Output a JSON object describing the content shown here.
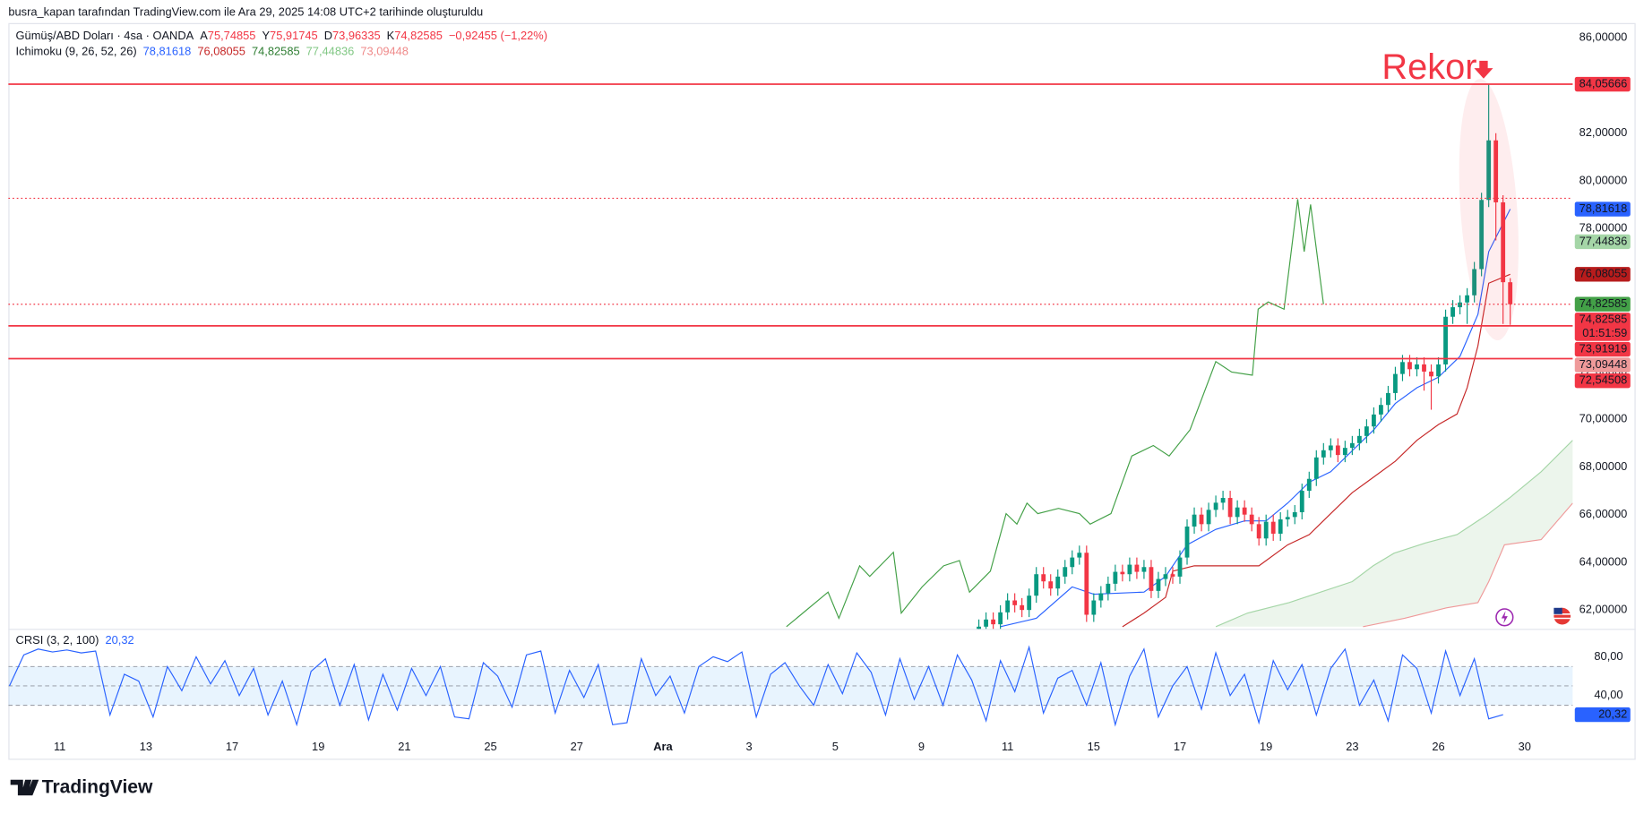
{
  "header": "busra_kapan tarafından TradingView.com ile Ara 29, 2025 14:08 UTC+2 tarihinde oluşturuldu",
  "footer": {
    "logo": "TradingView"
  },
  "chart_data": [
    {
      "type": "candlestick",
      "legend": {
        "symbol": "Gümüş/ABD Doları · 4sa · OANDA",
        "ohlc": [
          {
            "key": "A",
            "text": "75,74855"
          },
          {
            "key": "Y",
            "text": "75,91745"
          },
          {
            "key": "D",
            "text": "73,96335"
          },
          {
            "key": "K",
            "text": "74,82585"
          }
        ],
        "change": "−0,92455 (−1,22%)",
        "color": "#f23645"
      },
      "indicator": {
        "name": "Ichimoku (9, 26, 52, 26)",
        "values_text": [
          "78,81618",
          "76,08055",
          "74,82585",
          "77,44836",
          "73,09448"
        ],
        "colors": [
          "#2962ff",
          "#c62828",
          "#2e7d32",
          "#81c784",
          "#ef8a8a"
        ]
      },
      "annotation": "Rekor",
      "up_color": "#089981",
      "down_color": "#f23645",
      "xlim": [
        -7.15,
        210.7
      ],
      "ylim": [
        61.21,
        86.62
      ],
      "grid": false,
      "xticks": [
        {
          "value": 0,
          "label": "11"
        },
        {
          "value": 12,
          "label": "13"
        },
        {
          "value": 24,
          "label": "17"
        },
        {
          "value": 36,
          "label": "19"
        },
        {
          "value": 48,
          "label": "21"
        },
        {
          "value": 60,
          "label": "25"
        },
        {
          "value": 72,
          "label": "27"
        },
        {
          "value": 84,
          "label": "Ara"
        },
        {
          "value": 96,
          "label": "3"
        },
        {
          "value": 108,
          "label": "5"
        },
        {
          "value": 120,
          "label": "9"
        },
        {
          "value": 132,
          "label": "11"
        },
        {
          "value": 144,
          "label": "15"
        },
        {
          "value": 156,
          "label": "17"
        },
        {
          "value": 168,
          "label": "19"
        },
        {
          "value": 180,
          "label": "23"
        },
        {
          "value": 192,
          "label": "26"
        },
        {
          "value": 204,
          "label": "30"
        }
      ],
      "yticks": [
        {
          "value": 62,
          "label": "62,00000"
        },
        {
          "value": 64,
          "label": "64,00000"
        },
        {
          "value": 66,
          "label": "66,00000"
        },
        {
          "value": 68,
          "label": "68,00000"
        },
        {
          "value": 70,
          "label": "70,00000"
        },
        {
          "value": 72,
          "label": "72,00000"
        },
        {
          "value": 74,
          "label": "74,00000"
        },
        {
          "value": 76,
          "label": "76,00000"
        },
        {
          "value": 78,
          "label": "78,00000"
        },
        {
          "value": 80,
          "label": "80,00000"
        },
        {
          "value": 82,
          "label": "82,00000"
        },
        {
          "value": 84,
          "label": "84,00000"
        },
        {
          "value": 86,
          "label": "86,00000"
        }
      ],
      "x": [
        128,
        129,
        130,
        131,
        132,
        133,
        134,
        135,
        136,
        137,
        138,
        139,
        140,
        141,
        142,
        143,
        144,
        145,
        146,
        147,
        148,
        149,
        150,
        151,
        152,
        153,
        154,
        155,
        156,
        157,
        158,
        159,
        160,
        161,
        162,
        163,
        164,
        165,
        166,
        167,
        168,
        169,
        170,
        171,
        172,
        173,
        174,
        175,
        176,
        177,
        178,
        179,
        180,
        181,
        182,
        183,
        184,
        185,
        186,
        187,
        188,
        189,
        190,
        191,
        192,
        193,
        194,
        195,
        196,
        197,
        198,
        199,
        200,
        201,
        202
      ],
      "open": [
        61.0,
        61.3,
        61.6,
        61.4,
        61.9,
        62.4,
        62.2,
        62.0,
        62.6,
        63.5,
        63.2,
        62.9,
        63.4,
        63.8,
        64.2,
        64.4,
        61.8,
        62.4,
        62.7,
        63.1,
        63.6,
        63.5,
        63.9,
        63.6,
        63.8,
        62.8,
        63.3,
        63.5,
        63.4,
        64.2,
        65.5,
        66.0,
        65.6,
        66.2,
        66.5,
        66.7,
        65.9,
        66.3,
        66.0,
        65.6,
        65.0,
        65.7,
        65.2,
        65.8,
        65.9,
        66.1,
        67.0,
        67.5,
        68.4,
        68.7,
        68.9,
        68.5,
        68.8,
        69.0,
        69.3,
        69.7,
        70.2,
        70.6,
        71.1,
        71.9,
        72.4,
        72.1,
        72.3,
        72.0,
        71.8,
        72.3,
        74.3,
        74.7,
        74.9,
        75.2,
        76.3,
        79.2,
        81.7,
        79.1,
        75.74855
      ],
      "high": [
        61.6,
        61.9,
        61.9,
        62.2,
        62.7,
        62.7,
        62.5,
        62.9,
        63.8,
        63.8,
        63.5,
        63.7,
        64.1,
        64.5,
        64.7,
        64.7,
        62.7,
        63.0,
        63.4,
        63.9,
        63.9,
        64.2,
        64.2,
        64.1,
        64.1,
        63.6,
        63.8,
        63.8,
        64.5,
        65.8,
        66.3,
        66.3,
        66.5,
        66.8,
        67.0,
        67.0,
        66.6,
        66.6,
        66.3,
        65.9,
        66.0,
        66.0,
        66.1,
        66.2,
        66.4,
        67.3,
        67.8,
        68.7,
        69.0,
        69.2,
        69.2,
        69.1,
        69.3,
        69.6,
        70.0,
        70.5,
        70.9,
        71.4,
        72.2,
        72.7,
        72.7,
        72.6,
        72.6,
        72.3,
        72.6,
        74.6,
        75.0,
        75.2,
        75.5,
        76.6,
        79.5,
        84.05666,
        82.0,
        79.4,
        75.91745
      ],
      "low": [
        60.7,
        61.0,
        61.1,
        61.1,
        61.6,
        61.9,
        61.7,
        61.7,
        62.3,
        62.9,
        62.6,
        62.6,
        63.1,
        63.5,
        63.9,
        61.5,
        61.5,
        62.1,
        62.4,
        62.8,
        63.2,
        63.2,
        63.3,
        63.3,
        62.5,
        62.5,
        63.0,
        63.1,
        63.1,
        63.9,
        65.2,
        65.3,
        65.3,
        65.9,
        66.2,
        65.6,
        65.6,
        65.7,
        65.3,
        64.7,
        64.7,
        64.9,
        64.9,
        65.5,
        65.6,
        65.8,
        66.7,
        67.2,
        68.1,
        68.4,
        68.2,
        68.2,
        68.5,
        68.7,
        69.0,
        69.4,
        69.9,
        70.3,
        70.8,
        71.6,
        71.8,
        71.8,
        71.2,
        70.4,
        71.5,
        72.0,
        74.0,
        74.4,
        74.0,
        74.9,
        76.0,
        78.9,
        77.5,
        74.0,
        73.96335
      ],
      "close": [
        61.3,
        61.6,
        61.4,
        61.9,
        62.4,
        62.2,
        62.0,
        62.6,
        63.5,
        63.2,
        62.9,
        63.4,
        63.8,
        64.2,
        64.4,
        61.8,
        62.4,
        62.7,
        63.1,
        63.6,
        63.5,
        63.9,
        63.6,
        63.8,
        62.8,
        63.3,
        63.5,
        63.4,
        64.2,
        65.5,
        66.0,
        65.6,
        66.2,
        66.5,
        66.7,
        65.9,
        66.3,
        66.0,
        65.6,
        65.0,
        65.7,
        65.2,
        65.8,
        65.9,
        66.1,
        67.0,
        67.5,
        68.4,
        68.7,
        68.9,
        68.5,
        68.8,
        69.0,
        69.3,
        69.7,
        70.2,
        70.6,
        71.1,
        71.9,
        72.4,
        72.1,
        72.3,
        72.0,
        71.8,
        72.3,
        74.3,
        74.7,
        74.9,
        75.2,
        76.3,
        79.2,
        81.7,
        79.1,
        75.75,
        74.82585
      ],
      "series": [
        {
          "color": "#2962ff",
          "x": [
            131,
            136,
            141,
            144,
            151,
            154,
            157,
            161,
            165,
            168,
            171,
            174,
            177,
            180,
            183,
            186,
            189,
            192,
            195,
            197.5,
            199,
            202
          ],
          "values": [
            61.3,
            61.65,
            62.97,
            62.66,
            62.75,
            63.41,
            64.73,
            65.38,
            65.74,
            65.74,
            66.48,
            67.36,
            67.8,
            68.68,
            69.56,
            70.66,
            71.32,
            71.76,
            72.64,
            74.4,
            77.03,
            78.81618
          ]
        },
        {
          "color": "#c62828",
          "x": [
            148,
            151,
            154,
            155,
            158,
            167,
            168,
            171,
            174,
            177,
            180,
            183,
            186,
            189,
            192,
            194.6,
            196,
            197.5,
            199,
            202
          ],
          "values": [
            61.3,
            61.87,
            62.53,
            63.63,
            63.85,
            63.85,
            64.07,
            64.73,
            65.16,
            66.04,
            66.92,
            67.58,
            68.24,
            69.12,
            69.78,
            70.22,
            71.32,
            73.08,
            75.71,
            76.08055
          ]
        },
        {
          "color": "#43a047",
          "x": [
            101.2,
            107,
            108.5,
            111.4,
            112.8,
            116.1,
            117.2,
            120.1,
            123.1,
            125.3,
            126.7,
            129.6,
            131.8,
            133.3,
            134.7,
            136.2,
            139.1,
            142,
            143.5,
            146.4,
            149.3,
            152.3,
            154.5,
            157.4,
            161,
            163.2,
            166.1,
            166.9,
            168.3,
            170.5,
            172.4,
            173.3,
            174.2,
            176
          ],
          "values": [
            61.3,
            62.75,
            61.65,
            63.85,
            63.41,
            64.42,
            61.87,
            62.97,
            63.85,
            64.07,
            62.75,
            63.63,
            66.04,
            65.6,
            66.48,
            66.04,
            66.26,
            66.04,
            65.6,
            66.04,
            68.46,
            68.9,
            68.46,
            69.56,
            72.42,
            71.98,
            71.85,
            74.62,
            74.92,
            74.62,
            79.23,
            77.03,
            79.01,
            74.82585
          ]
        },
        {
          "color": "#a5d6a7",
          "x": [
            161,
            165.4,
            171.2,
            175.6,
            180,
            182.9,
            185.8,
            190.2,
            194.6,
            199,
            201.9,
            206.3,
            210.7
          ],
          "values": [
            61.3,
            61.87,
            62.31,
            62.75,
            63.19,
            63.85,
            64.38,
            64.81,
            65.16,
            66.04,
            66.7,
            67.8,
            69.12
          ]
        },
        {
          "color": "#ef9a9a",
          "x": [
            181.5,
            187.3,
            193.1,
            197.5,
            199,
            201.2,
            206.3,
            210.7
          ],
          "values": [
            61.3,
            61.65,
            62.09,
            62.31,
            63.19,
            64.73,
            64.95,
            66.48
          ]
        }
      ],
      "cloud_color": "rgba(67,160,71,0.10)",
      "hlines": [
        {
          "value": 84.05666,
          "style": "solid",
          "color": "#f23645"
        },
        {
          "value": 79.27,
          "style": "dotted",
          "color": "#f23645"
        },
        {
          "value": 74.82585,
          "style": "dotted",
          "color": "#f23645"
        },
        {
          "value": 73.91919,
          "style": "solid",
          "color": "#f23645"
        },
        {
          "value": 72.54508,
          "style": "solid",
          "color": "#f23645"
        }
      ],
      "markers": [
        {
          "value": 84.05666,
          "label": "84,05666",
          "color": "#f23645",
          "text_color": "#ffffff"
        },
        {
          "value": 78.81618,
          "label": "78,81618",
          "color": "#2962ff",
          "text_color": "#ffffff"
        },
        {
          "value": 77.44836,
          "label": "77,44836",
          "color": "#a5d6a7",
          "text_color": "#131722"
        },
        {
          "value": 76.08055,
          "label": "76,08055",
          "color": "#b71c1c",
          "text_color": "#ffffff"
        },
        {
          "value": 74.82585,
          "label": "74,82585",
          "color": "#43a047",
          "text_color": "#ffffff"
        },
        {
          "value": 74.82585,
          "label": "74,82585",
          "color": "#f23645",
          "text_color": "#ffffff",
          "extra": "01:51:59"
        },
        {
          "value": 73.91919,
          "label": "73,91919",
          "color": "#f23645",
          "text_color": "#ffffff"
        },
        {
          "value": 73.09448,
          "label": "73,09448",
          "color": "#ef9a9a",
          "text_color": "#131722"
        },
        {
          "value": 72.54508,
          "label": "72,54508",
          "color": "#f23645",
          "text_color": "#ffffff"
        }
      ]
    },
    {
      "type": "line",
      "legend": {
        "name": "CRSI (3, 2, 100)",
        "value_text": "20,32",
        "color": "#2962ff"
      },
      "ylim": [
        0.8,
        107.8
      ],
      "yticks": [
        {
          "value": 80,
          "label": "80,00"
        },
        {
          "value": 40,
          "label": "40,00"
        }
      ],
      "bands": [
        70,
        50,
        30
      ],
      "band_fill": "rgba(33,150,243,0.10)",
      "series": [
        {
          "color": "#2962ff",
          "x": [
            -7,
            -5,
            -3,
            -1,
            1,
            3,
            5,
            7,
            9,
            11,
            13,
            15,
            17,
            19,
            21,
            23,
            25,
            27,
            29,
            31,
            33,
            35,
            37,
            39,
            41,
            43,
            45,
            47,
            49,
            51,
            53,
            55,
            57,
            59,
            61,
            63,
            65,
            67,
            69,
            71,
            73,
            75,
            77,
            79,
            81,
            83,
            85,
            87,
            89,
            91,
            93,
            95,
            97,
            99,
            101,
            103,
            105,
            107,
            109,
            111,
            113,
            115,
            117,
            119,
            121,
            123,
            125,
            127,
            129,
            131,
            133,
            135,
            137,
            139,
            141,
            143,
            145,
            147,
            149,
            151,
            153,
            155,
            157,
            159,
            161,
            163,
            165,
            167,
            169,
            171,
            173,
            175,
            177,
            179,
            181,
            183,
            185,
            187,
            189,
            191,
            193,
            195,
            197,
            199,
            201
          ],
          "values": [
            50,
            82,
            88,
            85,
            87,
            84,
            86,
            20,
            62,
            55,
            18,
            70,
            45,
            80,
            52,
            76,
            40,
            68,
            20,
            55,
            10,
            65,
            78,
            30,
            72,
            15,
            62,
            25,
            68,
            40,
            70,
            18,
            16,
            74,
            60,
            28,
            82,
            86,
            22,
            66,
            38,
            72,
            10,
            12,
            78,
            40,
            60,
            22,
            70,
            80,
            75,
            85,
            18,
            62,
            74,
            50,
            30,
            72,
            42,
            84,
            64,
            20,
            78,
            36,
            70,
            30,
            82,
            56,
            14,
            76,
            44,
            90,
            22,
            58,
            66,
            30,
            74,
            10,
            60,
            88,
            18,
            50,
            70,
            26,
            84,
            40,
            62,
            12,
            76,
            46,
            72,
            20,
            68,
            88,
            30,
            56,
            14,
            82,
            68,
            22,
            86,
            40,
            78,
            16,
            20.32
          ]
        }
      ],
      "markers": [
        {
          "value": 20.32,
          "label": "20,32",
          "color": "#2962ff",
          "text_color": "#ffffff"
        }
      ]
    }
  ]
}
